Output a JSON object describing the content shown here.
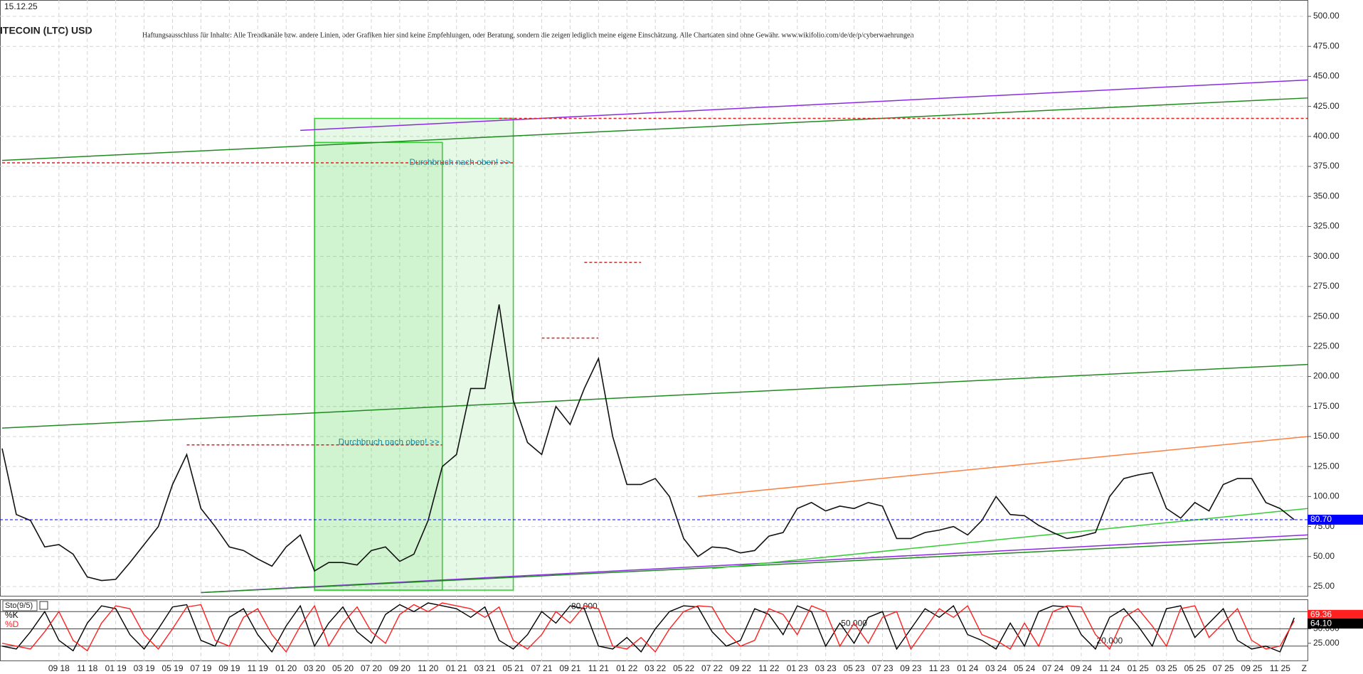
{
  "chart_data": [
    {
      "type": "line",
      "date": "15.12.25",
      "title": "ITECOIN (LTC) USD",
      "note": "Haftungsausschluss für Inhalte: Alle Trendkanäle bzw. andere Linien, oder Grafiken hier sind keine Empfehlungen, oder Beratung, sondern die zeigen lediglich meine eigene Einschätzung. Alle Chartdaten sind ohne Gewähr.  www.wikifolio.com/de/de/p/cyberwaehrungen",
      "categories": [
        null,
        null,
        null,
        null,
        "09 18",
        null,
        "11 18",
        null,
        "01 19",
        null,
        "03 19",
        null,
        "05 19",
        null,
        "07 19",
        null,
        "09 19",
        null,
        "11 19",
        null,
        "01 20",
        null,
        "03 20",
        null,
        "05 20",
        null,
        "07 20",
        null,
        "09 20",
        null,
        "11 20",
        null,
        "01 21",
        null,
        "03 21",
        null,
        "05 21",
        null,
        "07 21",
        null,
        "09 21",
        null,
        "11 21",
        null,
        "01 22",
        null,
        "03 22",
        null,
        "05 22",
        null,
        "07 22",
        null,
        "09 22",
        null,
        "11 22",
        null,
        "01 23",
        null,
        "03 23",
        null,
        "05 23",
        null,
        "07 23",
        null,
        "09 23",
        null,
        "11 23",
        null,
        "01 24",
        null,
        "03 24",
        null,
        "05 24",
        null,
        "07 24",
        null,
        "09 24",
        null,
        "11 24",
        null,
        "01 25",
        null,
        "03 25",
        null,
        "05 25",
        null,
        "07 25",
        null,
        "09 25",
        null,
        "11 25",
        null
      ],
      "end_label": "Z",
      "series": [
        {
          "name": "LTC",
          "color": "#111111",
          "values": [
            140,
            85,
            80,
            58,
            60,
            52,
            33,
            30,
            31,
            45,
            60,
            75,
            110,
            135,
            90,
            75,
            58,
            55,
            48,
            42,
            58,
            68,
            38,
            45,
            45,
            43,
            55,
            58,
            46,
            52,
            80,
            125,
            135,
            190,
            190,
            260,
            180,
            145,
            135,
            175,
            160,
            190,
            215,
            150,
            110,
            110,
            115,
            100,
            65,
            50,
            58,
            57,
            53,
            55,
            67,
            70,
            90,
            95,
            88,
            92,
            90,
            95,
            92,
            65,
            65,
            70,
            72,
            75,
            68,
            80,
            100,
            85,
            84,
            76,
            70,
            65,
            67,
            70,
            100,
            115,
            118,
            120,
            90,
            82,
            95,
            88,
            110,
            115,
            115,
            95,
            90,
            80.7
          ]
        }
      ],
      "ylim": [
        25,
        500
      ],
      "yticks": [
        {
          "value": 25,
          "label": "25.00"
        },
        {
          "value": 50,
          "label": "50.00"
        },
        {
          "value": 75,
          "label": "75.00"
        },
        {
          "value": 100,
          "label": "100.00"
        },
        {
          "value": 125,
          "label": "125.00"
        },
        {
          "value": 150,
          "label": "150.00"
        },
        {
          "value": 175,
          "label": "175.00"
        },
        {
          "value": 200,
          "label": "200.00"
        },
        {
          "value": 225,
          "label": "225.00"
        },
        {
          "value": 250,
          "label": "250.00"
        },
        {
          "value": 275,
          "label": "275.00"
        },
        {
          "value": 300,
          "label": "300.00"
        },
        {
          "value": 325,
          "label": "325.00"
        },
        {
          "value": 350,
          "label": "350.00"
        },
        {
          "value": 375,
          "label": "375.00"
        },
        {
          "value": 400,
          "label": "400.00"
        },
        {
          "value": 425,
          "label": "425.00"
        },
        {
          "value": 450,
          "label": "450.00"
        },
        {
          "value": 475,
          "label": "475.00"
        },
        {
          "value": 500,
          "label": "500.00"
        }
      ],
      "grid": true,
      "price_marker": {
        "value": 80.7,
        "label": "80.70",
        "color": "#0000ff"
      },
      "zones": [
        {
          "x": [
            22,
            36
          ],
          "y": [
            22,
            415
          ],
          "color": "#33cc33"
        },
        {
          "x": [
            22,
            31
          ],
          "y": [
            22,
            395
          ],
          "color": "#33cc33"
        }
      ],
      "trendlines": [
        {
          "x": [
            0,
            92
          ],
          "y": [
            380,
            432
          ],
          "color": "#1f8a1f",
          "dashed": false
        },
        {
          "x": [
            21,
            92
          ],
          "y": [
            405,
            447
          ],
          "color": "#8a2be2",
          "dashed": false
        },
        {
          "x": [
            0,
            92
          ],
          "y": [
            157,
            210
          ],
          "color": "#1f8a1f",
          "dashed": false
        },
        {
          "x": [
            14,
            92
          ],
          "y": [
            20,
            68
          ],
          "color": "#8a2be2",
          "dashed": false
        },
        {
          "x": [
            14,
            92
          ],
          "y": [
            20,
            65
          ],
          "color": "#1f8a1f",
          "dashed": false
        },
        {
          "x": [
            49,
            92
          ],
          "y": [
            100,
            150
          ],
          "color": "#ff7f3f",
          "dashed": false
        },
        {
          "x": [
            50,
            92
          ],
          "y": [
            40,
            90
          ],
          "color": "#33cc33",
          "dashed": false
        },
        {
          "x": [
            35,
            92
          ],
          "y": [
            415,
            415
          ],
          "color": "#e02020",
          "dashed": true
        },
        {
          "x": [
            0,
            36
          ],
          "y": [
            378,
            378
          ],
          "color": "#e02020",
          "dashed": true
        },
        {
          "x": [
            13,
            31
          ],
          "y": [
            143,
            143
          ],
          "color": "#e02020",
          "dashed": true
        },
        {
          "x": [
            41,
            45
          ],
          "y": [
            295,
            295
          ],
          "color": "#e02020",
          "dashed": true
        },
        {
          "x": [
            38,
            42
          ],
          "y": [
            232,
            232
          ],
          "color": "#e02020",
          "dashed": true
        }
      ],
      "annotations": [
        {
          "text": "Durchbruch nach oben! >>",
          "x": 36,
          "y": 378
        },
        {
          "text": "Durchbruch nach oben! >>",
          "x": 31,
          "y": 145
        }
      ]
    },
    {
      "type": "stochastic",
      "title": "Sto(9/5)",
      "series": [
        {
          "name": "%K",
          "color": "#000000",
          "values": [
            20,
            15,
            45,
            80,
            30,
            12,
            60,
            90,
            85,
            40,
            15,
            50,
            88,
            92,
            30,
            20,
            70,
            85,
            40,
            10,
            55,
            90,
            20,
            60,
            88,
            45,
            25,
            75,
            92,
            80,
            95,
            90,
            85,
            70,
            88,
            30,
            15,
            40,
            80,
            60,
            90,
            85,
            20,
            15,
            35,
            10,
            50,
            80,
            90,
            88,
            45,
            20,
            30,
            85,
            75,
            40,
            90,
            80,
            20,
            60,
            25,
            70,
            80,
            15,
            50,
            85,
            70,
            90,
            40,
            30,
            15,
            60,
            20,
            80,
            90,
            88,
            40,
            15,
            70,
            85,
            55,
            20,
            85,
            90,
            35,
            60,
            85,
            30,
            15,
            20,
            10,
            69.36
          ],
          "last_label": "69.36",
          "box": "#ff2020"
        },
        {
          "name": "%D",
          "color": "#ff2020",
          "values": [
            25,
            20,
            15,
            45,
            80,
            30,
            12,
            60,
            90,
            85,
            40,
            15,
            50,
            88,
            92,
            30,
            20,
            70,
            85,
            40,
            10,
            55,
            90,
            20,
            60,
            88,
            45,
            25,
            75,
            92,
            80,
            95,
            90,
            85,
            70,
            88,
            30,
            15,
            40,
            80,
            60,
            90,
            85,
            20,
            15,
            35,
            10,
            50,
            80,
            90,
            88,
            45,
            20,
            30,
            85,
            75,
            40,
            90,
            80,
            20,
            60,
            25,
            70,
            80,
            15,
            50,
            85,
            70,
            90,
            40,
            30,
            15,
            60,
            20,
            80,
            90,
            88,
            40,
            15,
            70,
            85,
            55,
            20,
            85,
            90,
            35,
            60,
            85,
            30,
            15,
            20,
            64.1
          ],
          "last_label": "64.10",
          "box": "#000000"
        }
      ],
      "ylim": [
        0,
        100
      ],
      "yticks": [
        {
          "value": 25,
          "label": "25.000"
        },
        {
          "value": 50,
          "label": "50.000"
        }
      ],
      "levels": [
        {
          "value": 80,
          "label": "80.000",
          "x": 41
        },
        {
          "value": 50,
          "label": "50.000",
          "x": 60
        },
        {
          "value": 20,
          "label": "20.000",
          "x": 78
        }
      ]
    }
  ]
}
